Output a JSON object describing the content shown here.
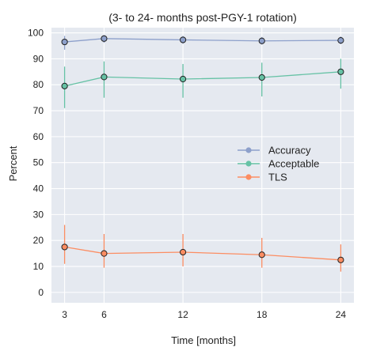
{
  "chart_data": {
    "type": "line",
    "title": "(3- to 24- months post-PGY-1 rotation)",
    "xlabel": "Time [months]",
    "ylabel": "Percent",
    "x": [
      3,
      6,
      12,
      18,
      24
    ],
    "x_ticks": [
      3,
      6,
      12,
      18,
      24
    ],
    "y_ticks": [
      0,
      10,
      20,
      30,
      40,
      50,
      60,
      70,
      80,
      90,
      100
    ],
    "xlim": [
      2,
      25
    ],
    "ylim": [
      -4,
      102
    ],
    "grid": true,
    "legend_position": "center-right",
    "series": [
      {
        "name": "Accuracy",
        "color": "#8da0cb",
        "values": [
          96.5,
          97.8,
          97.3,
          96.9,
          97.1
        ],
        "error_low": [
          93.5,
          96.2,
          95.8,
          95.5,
          95.6
        ],
        "error_high": [
          98.8,
          99.2,
          98.8,
          98.4,
          98.6
        ]
      },
      {
        "name": "Acceptable",
        "color": "#66c2a5",
        "values": [
          79.5,
          83.0,
          82.2,
          82.8,
          85.0
        ],
        "error_low": [
          71.0,
          75.0,
          75.0,
          75.5,
          78.5
        ],
        "error_high": [
          87.0,
          89.0,
          88.0,
          88.5,
          90.0
        ]
      },
      {
        "name": "TLS",
        "color": "#fc8d62",
        "values": [
          17.5,
          15.0,
          15.5,
          14.5,
          12.5
        ],
        "error_low": [
          11.0,
          9.5,
          10.0,
          9.5,
          8.0
        ],
        "error_high": [
          26.0,
          22.5,
          22.5,
          21.0,
          18.5
        ]
      }
    ]
  }
}
